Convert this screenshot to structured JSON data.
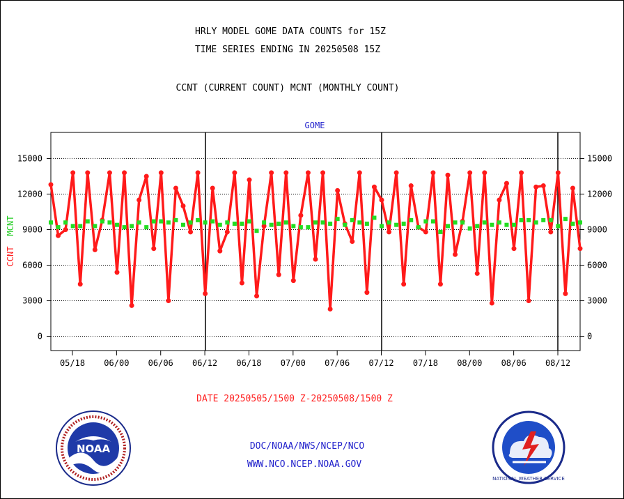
{
  "header": {
    "title_line1": "HRLY MODEL GOME DATA COUNTS for 15Z",
    "title_line2": "TIME SERIES ENDING IN 20250508 15Z",
    "subtitle": "CCNT (CURRENT COUNT) MCNT (MONTHLY COUNT)"
  },
  "footer": {
    "date_range": "DATE 20250505/1500 Z-20250508/1500 Z",
    "org_path": "DOC/NOAA/NWS/NCEP/NCO",
    "website": "WWW.NCO.NCEP.NOAA.GOV"
  },
  "logos": {
    "noaa_text": "NOAA",
    "nws_text": "NATIONAL WEATHER SERVICE"
  },
  "colors": {
    "ccnt": "#ff1a1a",
    "mcnt": "#22dd22",
    "text_blue": "#2222cc",
    "text_red": "#ff2222"
  },
  "chart_data": {
    "type": "line",
    "title": "GOME",
    "ylabel_ccnt": "CCNT",
    "ylabel_mcnt": "MCNT",
    "ylim": [
      -1200,
      17200
    ],
    "yticks": [
      0,
      3000,
      6000,
      9000,
      12000,
      15000
    ],
    "grid": true,
    "xticks": [
      "05/18",
      "06/00",
      "06/06",
      "06/12",
      "06/18",
      "07/00",
      "07/06",
      "07/12",
      "07/18",
      "08/00",
      "08/06",
      "08/12"
    ],
    "x": [
      0,
      1,
      2,
      3,
      4,
      5,
      6,
      7,
      8,
      9,
      10,
      11,
      12,
      13,
      14,
      15,
      16,
      17,
      18,
      19,
      20,
      21,
      22,
      23,
      24,
      25,
      26,
      27,
      28,
      29,
      30,
      31,
      32,
      33,
      34,
      35,
      36,
      37,
      38,
      39,
      40,
      41,
      42,
      43,
      44,
      45,
      46,
      47,
      48,
      49,
      50,
      51,
      52,
      53,
      54,
      55,
      56,
      57,
      58,
      59,
      60,
      61,
      62,
      63,
      64,
      65,
      66,
      67,
      68,
      69,
      70,
      71,
      72
    ],
    "series": [
      {
        "name": "CCNT",
        "values": [
          12800,
          8500,
          9000,
          13800,
          4400,
          13800,
          7300,
          9800,
          13800,
          5400,
          13800,
          2600,
          11500,
          13500,
          7400,
          13800,
          3000,
          12500,
          11000,
          8800,
          13800,
          3600,
          12500,
          7200,
          8800,
          13800,
          4500,
          13200,
          3400,
          9300,
          13800,
          5200,
          13800,
          4700,
          10200,
          13800,
          6500,
          13800,
          2300,
          12300,
          9500,
          8000,
          13800,
          3700,
          12600,
          11500,
          8800,
          13800,
          4400,
          12700,
          9200,
          8800,
          13800,
          4400,
          13600,
          6900,
          9700,
          13800,
          5300,
          13800,
          2800,
          11500,
          12900,
          7400,
          13800,
          3000,
          12600,
          12700,
          8800,
          13800,
          3600,
          12500,
          7400
        ]
      },
      {
        "name": "MCNT",
        "values": [
          9600,
          9200,
          9600,
          9300,
          9300,
          9700,
          9300,
          9700,
          9600,
          9400,
          9200,
          9300,
          9600,
          9200,
          9700,
          9700,
          9600,
          9800,
          9400,
          9600,
          9800,
          9600,
          9700,
          9400,
          9600,
          9500,
          9500,
          9700,
          8900,
          9600,
          9400,
          9500,
          9600,
          9300,
          9200,
          9200,
          9600,
          9600,
          9500,
          9900,
          9400,
          9800,
          9600,
          9500,
          10000,
          9300,
          9600,
          9400,
          9500,
          9800,
          9200,
          9700,
          9700,
          8800,
          9300,
          9600,
          9600,
          9100,
          9300,
          9600,
          9400,
          9600,
          9400,
          9400,
          9800,
          9800,
          9600,
          9800,
          9800,
          9300,
          9900,
          9500,
          9600
        ]
      }
    ]
  }
}
